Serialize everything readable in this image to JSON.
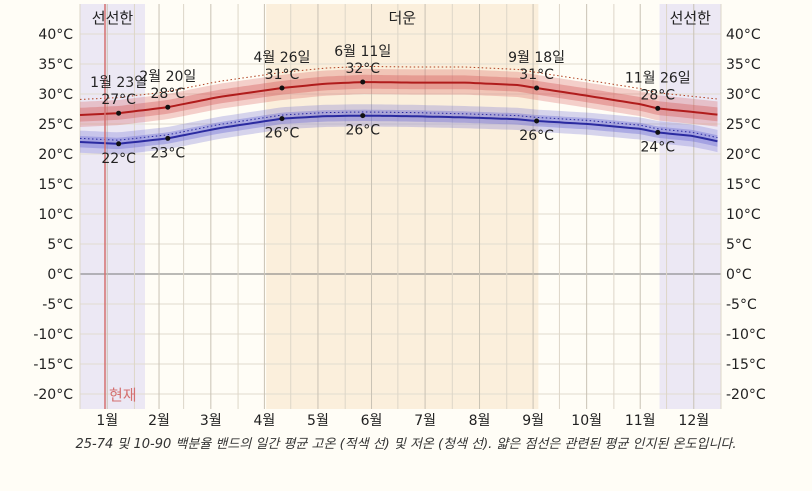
{
  "chart_data": {
    "type": "line",
    "y_unit": "°C",
    "ylim": [
      -22.5,
      45
    ],
    "yticks": [
      40,
      35,
      30,
      25,
      20,
      15,
      10,
      5,
      0,
      -5,
      -10,
      -15,
      -20
    ],
    "ytick_labels": [
      "40°C",
      "35°C",
      "30°C",
      "25°C",
      "20°C",
      "15°C",
      "10°C",
      "5°C",
      "0°C",
      "-5°C",
      "-10°C",
      "-15°C",
      "-20°C"
    ],
    "months": [
      "1월",
      "2월",
      "3월",
      "4월",
      "5월",
      "6월",
      "7월",
      "8월",
      "9월",
      "10월",
      "11월",
      "12월"
    ],
    "seasons": [
      {
        "label": "선선한",
        "start_day": 1,
        "end_day": 38,
        "color": "#ece8f4"
      },
      {
        "label": "더운",
        "start_day": 107,
        "end_day": 262,
        "color": "#fbefdc"
      },
      {
        "label": "선선한",
        "start_day": 331,
        "end_day": 366,
        "color": "#ece8f4"
      }
    ],
    "today": {
      "label": "현재",
      "day": 1
    },
    "colors": {
      "high": "#b01c1c",
      "low": "#2a2aa0",
      "high_band": "#d65a5a",
      "low_band": "#6a6ad4",
      "mean": "#b04020",
      "zero": "#777777"
    },
    "series": [
      {
        "key": "high",
        "days": [
          1,
          23,
          51,
          80,
          116,
          140,
          162,
          190,
          220,
          250,
          261,
          290,
          320,
          330,
          350,
          366
        ],
        "values": [
          26.5,
          26.8,
          27.8,
          29.5,
          31.0,
          31.7,
          32.0,
          31.9,
          31.9,
          31.5,
          31.0,
          29.7,
          28.3,
          27.6,
          27.0,
          26.5
        ],
        "band_25_75": [
          1.1,
          1.2
        ],
        "band_10_90": [
          2.0,
          2.2
        ],
        "mean_offset": 2.6
      },
      {
        "key": "low",
        "days": [
          1,
          23,
          51,
          80,
          116,
          140,
          162,
          190,
          220,
          250,
          261,
          290,
          320,
          330,
          350,
          366
        ],
        "values": [
          22.0,
          21.7,
          22.6,
          24.3,
          25.9,
          26.3,
          26.4,
          26.3,
          26.1,
          25.8,
          25.5,
          25.0,
          24.2,
          23.6,
          23.0,
          22.0
        ],
        "band_25_75": [
          0.9,
          1.0
        ],
        "band_10_90": [
          1.8,
          1.9
        ],
        "mean_offset": 0.6
      }
    ],
    "annotations": [
      {
        "day": 23,
        "series": "high",
        "date": "1월 23일",
        "value": "27°C",
        "position": "above"
      },
      {
        "day": 51,
        "series": "high",
        "date": "2월 20일",
        "value": "28°C",
        "position": "above"
      },
      {
        "day": 116,
        "series": "high",
        "date": "4월 26일",
        "value": "31°C",
        "position": "above"
      },
      {
        "day": 162,
        "series": "high",
        "date": "6월 11일",
        "value": "32°C",
        "position": "above"
      },
      {
        "day": 261,
        "series": "high",
        "date": "9월 18일",
        "value": "31°C",
        "position": "above"
      },
      {
        "day": 330,
        "series": "high",
        "date": "11월 26일",
        "value": "28°C",
        "position": "above"
      },
      {
        "day": 23,
        "series": "low",
        "value": "22°C",
        "position": "below"
      },
      {
        "day": 51,
        "series": "low",
        "value": "23°C",
        "position": "below"
      },
      {
        "day": 116,
        "series": "low",
        "value": "26°C",
        "position": "below"
      },
      {
        "day": 162,
        "series": "low",
        "value": "26°C",
        "position": "below"
      },
      {
        "day": 261,
        "series": "low",
        "value": "26°C",
        "position": "below"
      },
      {
        "day": 330,
        "series": "low",
        "value": "24°C",
        "position": "below"
      }
    ]
  },
  "caption": "25-74 및 10-90 백분율 밴드의 일간 평균 고온 (적색 선) 및 저온 (청색 선). 얇은 점선은 관련된 평균 인지된 온도입니다."
}
